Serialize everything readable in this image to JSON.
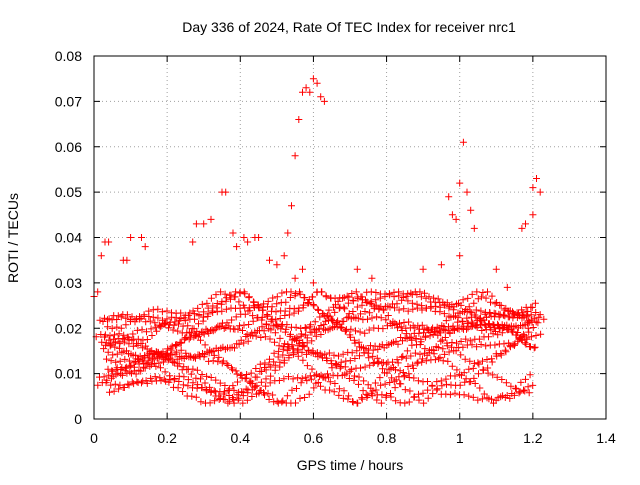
{
  "chart_data": {
    "type": "scatter",
    "title": "Day 336 of 2024, Rate Of TEC Index for receiver nrc1",
    "xlabel": "GPS time / hours",
    "ylabel": "ROTI / TECUs",
    "xlim": [
      0,
      1.4
    ],
    "ylim": [
      0,
      0.08
    ],
    "x_ticks": [
      "0",
      "0.2",
      "0.4",
      "0.6",
      "0.8",
      "1",
      "1.2",
      "1.4"
    ],
    "y_ticks": [
      "0",
      "0.01",
      "0.02",
      "0.03",
      "0.04",
      "0.05",
      "0.06",
      "0.07",
      "0.08"
    ],
    "grid": true,
    "marker": "+",
    "color": "#ff0000",
    "series": [
      {
        "points": [
          [
            0.0,
            0.027
          ],
          [
            0.01,
            0.028
          ],
          [
            0.02,
            0.036
          ],
          [
            0.03,
            0.039
          ],
          [
            0.04,
            0.039
          ],
          [
            0.08,
            0.035
          ],
          [
            0.09,
            0.035
          ],
          [
            0.1,
            0.04
          ],
          [
            0.13,
            0.04
          ],
          [
            0.14,
            0.038
          ],
          [
            0.27,
            0.039
          ],
          [
            0.28,
            0.043
          ],
          [
            0.3,
            0.043
          ],
          [
            0.32,
            0.044
          ],
          [
            0.35,
            0.05
          ],
          [
            0.36,
            0.05
          ],
          [
            0.38,
            0.041
          ],
          [
            0.39,
            0.038
          ],
          [
            0.41,
            0.04
          ],
          [
            0.42,
            0.039
          ],
          [
            0.44,
            0.04
          ],
          [
            0.45,
            0.04
          ],
          [
            0.48,
            0.035
          ],
          [
            0.5,
            0.034
          ],
          [
            0.52,
            0.036
          ],
          [
            0.53,
            0.041
          ],
          [
            0.54,
            0.047
          ],
          [
            0.55,
            0.058
          ],
          [
            0.56,
            0.066
          ],
          [
            0.57,
            0.072
          ],
          [
            0.58,
            0.073
          ],
          [
            0.59,
            0.072
          ],
          [
            0.6,
            0.075
          ],
          [
            0.61,
            0.074
          ],
          [
            0.62,
            0.071
          ],
          [
            0.63,
            0.07
          ],
          [
            0.55,
            0.031
          ],
          [
            0.57,
            0.033
          ],
          [
            0.6,
            0.03
          ],
          [
            0.72,
            0.033
          ],
          [
            0.76,
            0.031
          ],
          [
            0.9,
            0.033
          ],
          [
            0.95,
            0.034
          ],
          [
            0.97,
            0.049
          ],
          [
            0.98,
            0.045
          ],
          [
            0.99,
            0.044
          ],
          [
            1.0,
            0.052
          ],
          [
            1.01,
            0.061
          ],
          [
            1.02,
            0.05
          ],
          [
            1.03,
            0.046
          ],
          [
            1.04,
            0.042
          ],
          [
            1.0,
            0.036
          ],
          [
            1.1,
            0.033
          ],
          [
            1.13,
            0.029
          ],
          [
            1.17,
            0.042
          ],
          [
            1.18,
            0.043
          ],
          [
            1.2,
            0.051
          ],
          [
            1.21,
            0.053
          ],
          [
            1.22,
            0.05
          ],
          [
            1.2,
            0.045
          ],
          [
            1.22,
            0.023
          ],
          [
            1.23,
            0.022
          ]
        ]
      }
    ],
    "band_seed": 336,
    "band_note_hidden": ""
  }
}
